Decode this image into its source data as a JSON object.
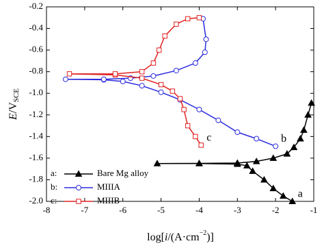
{
  "chart_data": {
    "type": "line",
    "x_label": {
      "parts": [
        "log[",
        "i",
        "/(A·cm",
        "−2",
        ")]"
      ]
    },
    "y_label": {
      "parts": [
        "E",
        "/V",
        "SCE"
      ]
    },
    "xlim": [
      -8,
      -1
    ],
    "xticks": [
      -8,
      -7,
      -6,
      -5,
      -4,
      -3,
      -2,
      -1
    ],
    "ylim": [
      -0.2,
      -2.0
    ],
    "yticks": [
      -0.2,
      -0.4,
      -0.6,
      -0.8,
      {
        "value": -1.0,
        "label": "-1.0"
      },
      -1.2,
      -1.4,
      -1.6,
      -1.8,
      {
        "value": -2.0,
        "label": "-2.0"
      }
    ],
    "legend": "lower left",
    "series": [
      {
        "name": "Bare Mg alloy",
        "key": "a:",
        "tag": "a",
        "color": "#000000",
        "marker": "triangle",
        "filled": true,
        "x": [
          -1.56,
          -1.8,
          -2.06,
          -2.3,
          -2.6,
          -2.75,
          -3.0,
          -4.0,
          -5.1,
          -4.0,
          -3.0,
          -2.5,
          -2.06,
          -1.7,
          -1.52,
          -1.35,
          -1.26,
          -1.15,
          -1.06
        ],
        "values": [
          -2.0,
          -1.95,
          -1.88,
          -1.8,
          -1.72,
          -1.67,
          -1.655,
          -1.65,
          -1.65,
          -1.648,
          -1.645,
          -1.63,
          -1.6,
          -1.56,
          -1.5,
          -1.42,
          -1.34,
          -1.2,
          -1.09
        ]
      },
      {
        "name": "MIIIA",
        "key": "b:",
        "tag": "b",
        "color": "#2b2bdd",
        "marker": "circle",
        "filled": false,
        "x": [
          -2.0,
          -2.5,
          -3.0,
          -3.5,
          -4.0,
          -4.5,
          -5.0,
          -5.5,
          -6.0,
          -6.5,
          -7.5,
          -6.5,
          -5.8,
          -5.2,
          -4.6,
          -4.1,
          -3.85,
          -3.82,
          -3.9
        ],
        "values": [
          -1.49,
          -1.42,
          -1.36,
          -1.25,
          -1.15,
          -1.06,
          -0.99,
          -0.93,
          -0.89,
          -0.875,
          -0.87,
          -0.87,
          -0.86,
          -0.84,
          -0.79,
          -0.72,
          -0.62,
          -0.5,
          -0.31
        ]
      },
      {
        "name": "MIIIB",
        "key": "c:",
        "tag": "c",
        "color": "#e02020",
        "marker": "square",
        "filled": false,
        "x": [
          -3.95,
          -4.1,
          -4.3,
          -4.4,
          -4.5,
          -4.7,
          -5.0,
          -5.5,
          -6.2,
          -7.4,
          -6.2,
          -5.5,
          -5.2,
          -5.05,
          -4.9,
          -4.6,
          -4.3,
          -4.0
        ],
        "values": [
          -1.48,
          -1.4,
          -1.3,
          -1.15,
          -1.05,
          -0.98,
          -0.92,
          -0.86,
          -0.83,
          -0.82,
          -0.82,
          -0.8,
          -0.72,
          -0.6,
          -0.47,
          -0.36,
          -0.31,
          -0.3
        ]
      }
    ]
  }
}
